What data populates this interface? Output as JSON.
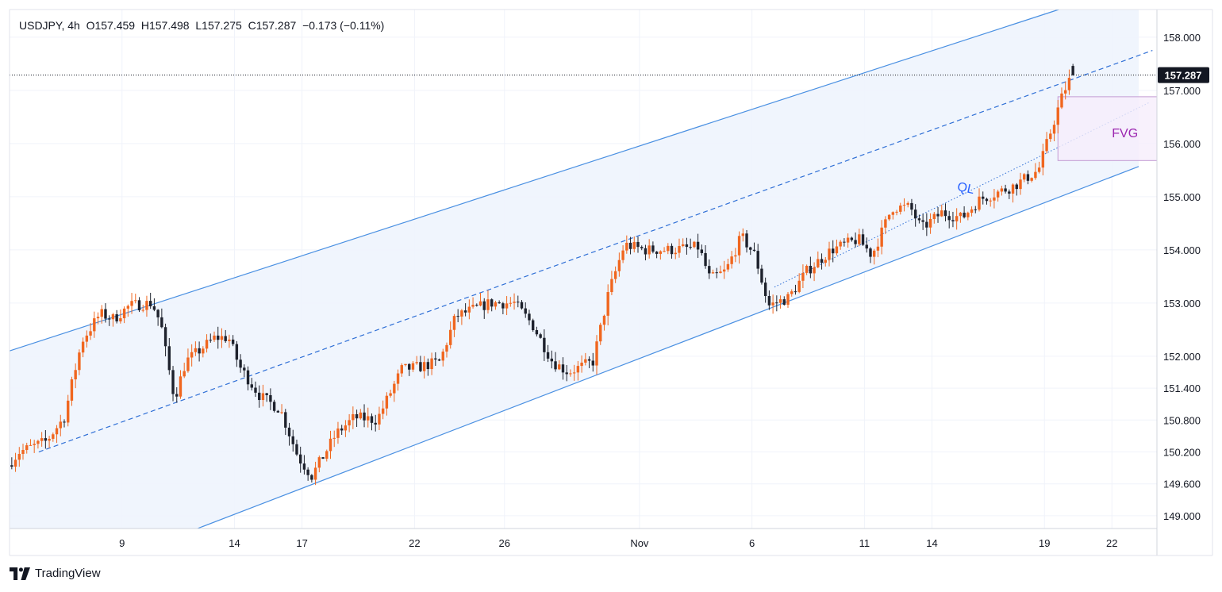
{
  "header": {
    "symbol": "USDJPY",
    "interval": "4h",
    "open_label": "O",
    "open": "157.459",
    "high_label": "H",
    "high": "157.498",
    "low_label": "L",
    "low": "157.275",
    "close_label": "C",
    "close": "157.287",
    "change": "−0.173 (−0.11%)"
  },
  "brand": {
    "name": "TradingView"
  },
  "colors": {
    "up": "#f0661f",
    "down": "#1e222d",
    "channel_line": "#4a90e2",
    "channel_fill": "#eef4fd",
    "fvg_border": "#c39bd3",
    "fvg_fill": "#f6eefb",
    "fvg_text": "#9c27b0",
    "ql_text": "#2962ff"
  },
  "chart_data": {
    "type": "candlestick",
    "title": "USDJPY, 4h",
    "x_tick_labels": [
      "9",
      "14",
      "17",
      "22",
      "26",
      "Nov",
      "6",
      "11",
      "14",
      "19",
      "22"
    ],
    "x_tick_days": [
      9,
      14,
      17,
      22,
      26,
      32,
      37,
      42,
      45,
      50,
      53
    ],
    "y_tick_labels": [
      "158.000",
      "157.000",
      "156.000",
      "155.000",
      "154.000",
      "153.000",
      "152.000",
      "151.400",
      "150.800",
      "150.200",
      "149.600",
      "149.000"
    ],
    "ylim": [
      148.76,
      158.52
    ],
    "xlim": [
      4.0,
      55.0
    ],
    "last_price": "157.287",
    "last_price_value": 157.287,
    "candles_per_day": 6,
    "first_candle_day": 4.1,
    "anchors": [
      [
        4.1,
        149.95
      ],
      [
        4.6,
        150.2
      ],
      [
        5.8,
        150.4
      ],
      [
        6.6,
        150.85
      ],
      [
        7.0,
        151.6
      ],
      [
        7.4,
        152.3
      ],
      [
        8.2,
        152.8
      ],
      [
        8.8,
        152.7
      ],
      [
        9.5,
        152.95
      ],
      [
        10.5,
        153.0
      ],
      [
        10.9,
        152.6
      ],
      [
        11.1,
        152.1
      ],
      [
        11.5,
        151.2
      ],
      [
        12.0,
        151.9
      ],
      [
        13.3,
        152.35
      ],
      [
        13.9,
        152.35
      ],
      [
        14.4,
        151.8
      ],
      [
        15.3,
        151.25
      ],
      [
        16.2,
        151.0
      ],
      [
        17.0,
        150.1
      ],
      [
        17.6,
        149.75
      ],
      [
        18.7,
        150.55
      ],
      [
        19.5,
        150.85
      ],
      [
        20.5,
        150.8
      ],
      [
        21.6,
        151.75
      ],
      [
        22.4,
        151.8
      ],
      [
        23.3,
        151.9
      ],
      [
        24.0,
        152.75
      ],
      [
        25.5,
        153.0
      ],
      [
        26.6,
        153.0
      ],
      [
        27.4,
        152.6
      ],
      [
        28.3,
        151.9
      ],
      [
        29.0,
        151.7
      ],
      [
        30.1,
        151.9
      ],
      [
        30.8,
        153.2
      ],
      [
        31.5,
        154.1
      ],
      [
        32.4,
        154.0
      ],
      [
        33.5,
        154.0
      ],
      [
        34.8,
        154.05
      ],
      [
        35.3,
        153.45
      ],
      [
        36.0,
        153.6
      ],
      [
        36.7,
        154.25
      ],
      [
        37.3,
        153.9
      ],
      [
        37.9,
        152.95
      ],
      [
        38.8,
        153.1
      ],
      [
        39.6,
        153.6
      ],
      [
        40.7,
        154.0
      ],
      [
        41.9,
        154.2
      ],
      [
        42.5,
        153.9
      ],
      [
        43.4,
        154.8
      ],
      [
        44.2,
        154.8
      ],
      [
        44.7,
        154.4
      ],
      [
        45.6,
        154.7
      ],
      [
        46.5,
        154.6
      ],
      [
        47.3,
        154.95
      ],
      [
        48.8,
        155.2
      ],
      [
        49.9,
        155.5
      ],
      [
        50.5,
        156.3
      ],
      [
        51.0,
        156.95
      ],
      [
        51.4,
        157.3
      ]
    ],
    "channel": {
      "upper": [
        [
          4.0,
          152.1
        ],
        [
          53.4,
          158.9
        ]
      ],
      "lower": [
        [
          4.0,
          147.4
        ],
        [
          55.0,
          155.7
        ]
      ],
      "middle": [
        [
          5.3,
          150.2
        ],
        [
          54.8,
          157.75
        ]
      ]
    },
    "ql": {
      "label": "QL",
      "line": [
        [
          38.0,
          153.3
        ],
        [
          54.7,
          156.78
        ]
      ]
    },
    "fvg": {
      "label": "FVG",
      "x0": 50.6,
      "x1": 55.0,
      "y_top": 156.88,
      "y_bottom": 155.68
    }
  }
}
